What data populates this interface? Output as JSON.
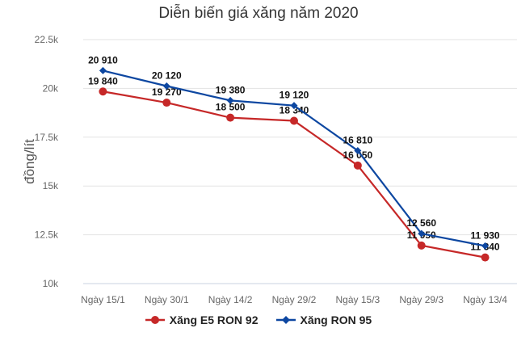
{
  "chart_data": {
    "type": "line",
    "title": "Diễn biến giá xăng năm 2020",
    "xlabel": "",
    "ylabel": "đồng/lít",
    "categories": [
      "Ngày 15/1",
      "Ngày 30/1",
      "Ngày 14/2",
      "Ngày 29/2",
      "Ngày 15/3",
      "Ngày 29/3",
      "Ngày 13/4"
    ],
    "ylim": [
      10000,
      22500
    ],
    "yticks": [
      10000,
      12500,
      15000,
      17500,
      20000,
      22500
    ],
    "ytick_labels": [
      "10k",
      "12.5k",
      "15k",
      "17.5k",
      "20k",
      "22.5k"
    ],
    "grid": true,
    "legend": "bottom",
    "series": [
      {
        "name": "Xăng E5 RON 92",
        "color": "#c62828",
        "marker": "circle",
        "values": [
          19840,
          19270,
          18500,
          18340,
          16050,
          11950,
          11340
        ],
        "labels": [
          "19 840",
          "19 270",
          "18 500",
          "18 340",
          "16 050",
          "11 950",
          "11 340"
        ]
      },
      {
        "name": "Xăng RON 95",
        "color": "#0d47a1",
        "marker": "diamond",
        "values": [
          20910,
          20120,
          19380,
          19120,
          16810,
          12560,
          11930
        ],
        "labels": [
          "20 910",
          "20 120",
          "19 380",
          "19 120",
          "16 810",
          "12 560",
          "11 930"
        ]
      }
    ]
  }
}
